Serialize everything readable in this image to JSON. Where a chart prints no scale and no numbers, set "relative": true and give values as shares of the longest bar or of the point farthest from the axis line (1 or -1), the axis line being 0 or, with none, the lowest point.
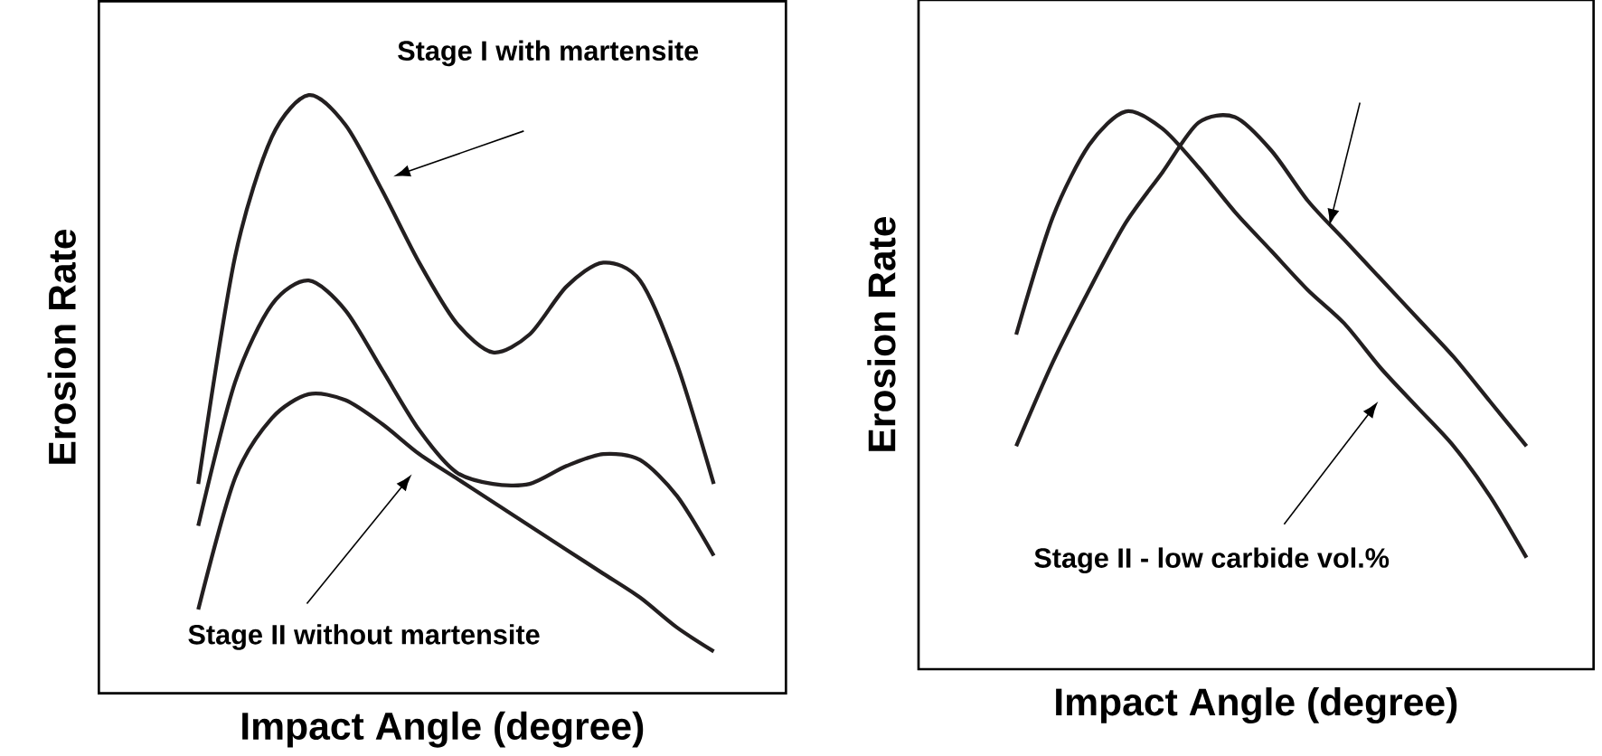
{
  "chart_data": [
    {
      "type": "line",
      "relative": true,
      "xlabel": "Impact  Angle (degree)",
      "ylabel": "Erosion  Rate",
      "categories": [
        null,
        null,
        null,
        null,
        null,
        null,
        null,
        null,
        null,
        null,
        null,
        null,
        null,
        null,
        null
      ],
      "series": [
        {
          "color": "#231f20",
          "values": [
            0.35,
            0.73,
            0.93,
            1,
            0.95,
            0.84,
            0.72,
            0.62,
            0.57,
            0.6,
            0.68,
            0.72,
            0.69,
            0.55,
            0.35
          ]
        },
        {
          "color": "#231f20",
          "values": [
            0.28,
            0.52,
            0.65,
            0.69,
            0.64,
            0.54,
            0.44,
            0.37,
            0.35,
            0.35,
            0.38,
            0.4,
            0.39,
            0.33,
            0.23
          ]
        },
        {
          "color": "#231f20",
          "values": [
            0.14,
            0.36,
            0.46,
            0.5,
            0.49,
            0.45,
            0.4,
            0.36,
            0.32,
            0.28,
            0.24,
            0.2,
            0.16,
            0.11,
            0.07
          ]
        }
      ],
      "annotations": [
        "Stage I with martensite",
        "Stage II without martensite"
      ]
    },
    {
      "type": "line",
      "relative": true,
      "xlabel": "Impact  Angle (degree)",
      "ylabel": "Erosion  Rate",
      "categories": [
        null,
        null,
        null,
        null,
        null,
        null,
        null,
        null,
        null,
        null,
        null,
        null,
        null,
        null,
        null
      ],
      "series": [
        {
          "color": "#231f20",
          "values": [
            0.6,
            0.81,
            0.94,
            1,
            0.97,
            0.9,
            0.82,
            0.75,
            0.68,
            0.62,
            0.54,
            0.47,
            0.4,
            0.31,
            0.2
          ]
        },
        {
          "color": "#231f20",
          "values": [
            0.4,
            0.55,
            0.68,
            0.8,
            0.89,
            0.98,
            0.99,
            0.93,
            0.84,
            0.77,
            0.7,
            0.63,
            0.56,
            0.48,
            0.4
          ]
        }
      ],
      "annotations": [
        "Stage II - low carbide vol.%"
      ]
    }
  ]
}
